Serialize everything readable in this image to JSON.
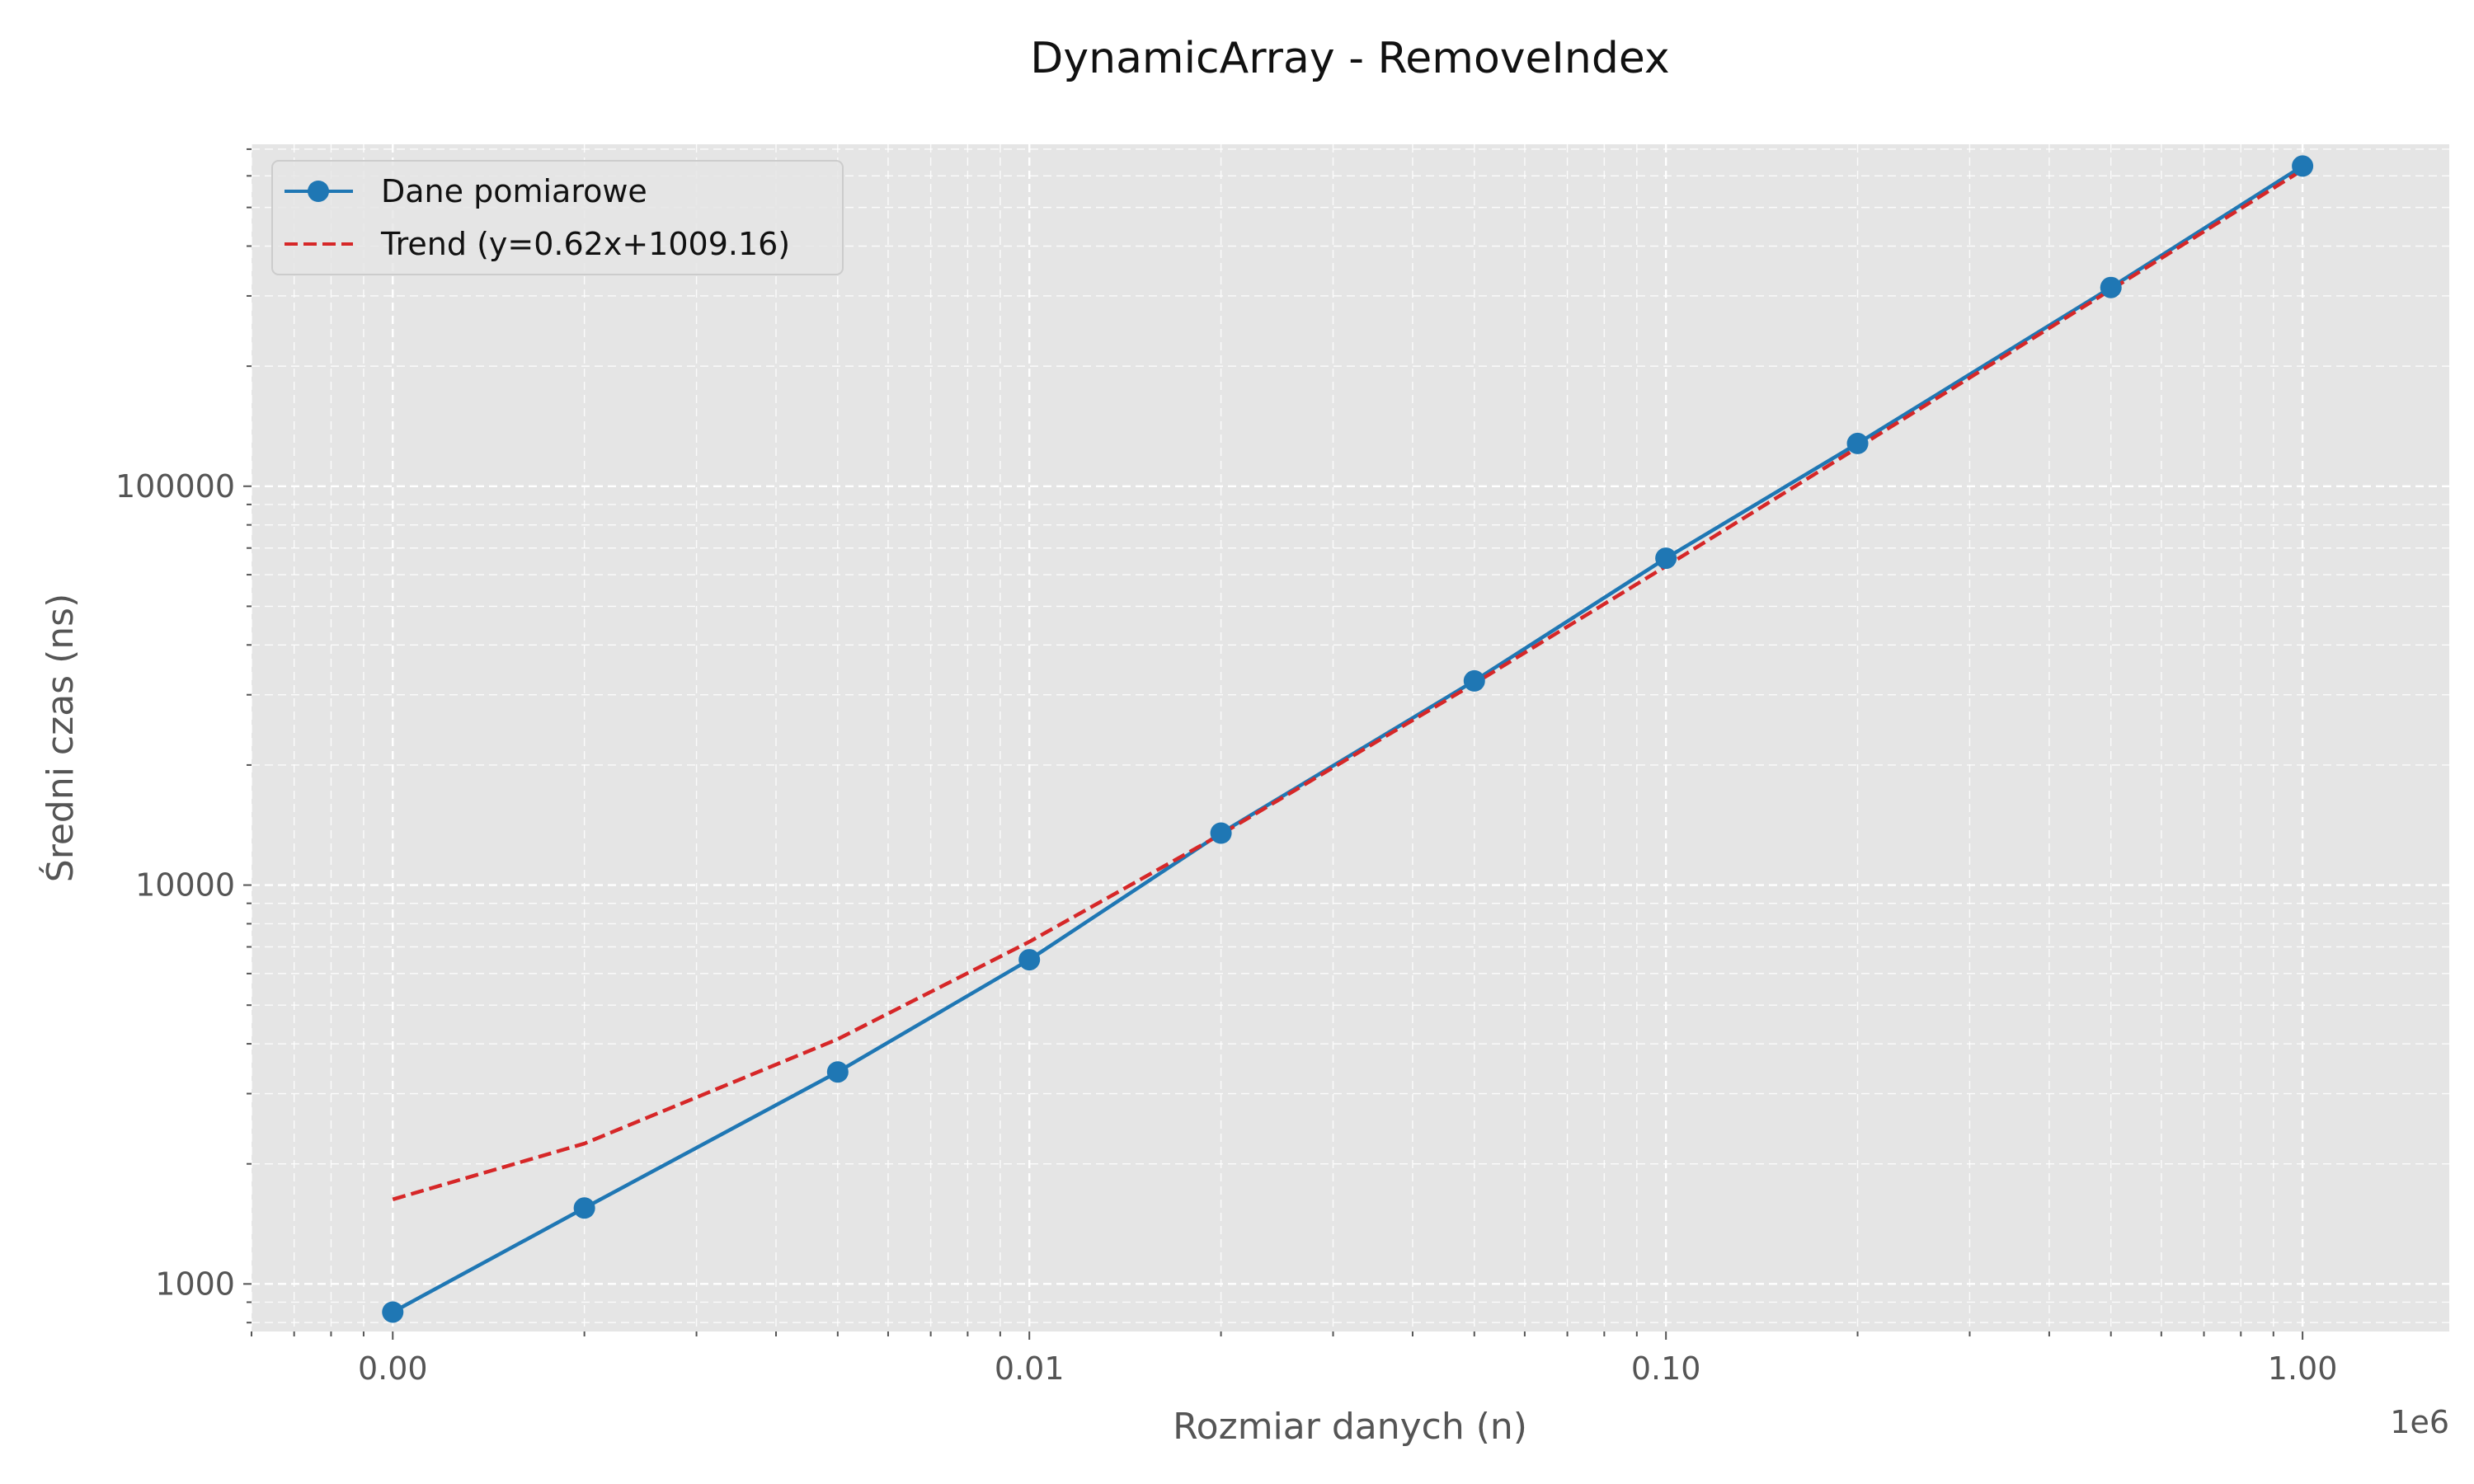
{
  "chart_data": {
    "type": "line",
    "title": "DynamicArray - RemoveIndex",
    "xlabel": "Rozmiar danych (n)",
    "ylabel": "Średni czas (ns)",
    "x_scale": "log",
    "y_scale": "log",
    "x_offset_label": "1e6",
    "xlim": [
      600,
      1700000
    ],
    "ylim": [
      760,
      720000
    ],
    "x_ticks": [
      {
        "value": 1000,
        "label": "0.00"
      },
      {
        "value": 10000,
        "label": "0.01"
      },
      {
        "value": 100000,
        "label": "0.10"
      },
      {
        "value": 1000000,
        "label": "1.00"
      }
    ],
    "y_ticks": [
      {
        "value": 1000,
        "label": "1000"
      },
      {
        "value": 10000,
        "label": "10000"
      },
      {
        "value": 100000,
        "label": "100000"
      }
    ],
    "grid": true,
    "legend_position": "top-left",
    "series": [
      {
        "name": "Dane pomiarowe",
        "style": "solid-with-markers",
        "color": "#1f77b4",
        "x": [
          1000,
          2000,
          5000,
          10000,
          20000,
          50000,
          100000,
          200000,
          500000,
          1000000
        ],
        "y": [
          850,
          1550,
          3400,
          6500,
          13500,
          32500,
          66000,
          128000,
          315000,
          635000
        ]
      },
      {
        "name": "Trend (y=0.62x+1009.16)",
        "style": "dashed",
        "color": "#d62728",
        "x": [
          1000,
          2000,
          5000,
          10000,
          20000,
          50000,
          100000,
          200000,
          500000,
          1000000
        ],
        "y": [
          1629.16,
          2249.16,
          4109.16,
          7209.16,
          13409.16,
          32009.16,
          63009.16,
          125009.16,
          311009.16,
          621009.16
        ]
      }
    ]
  }
}
